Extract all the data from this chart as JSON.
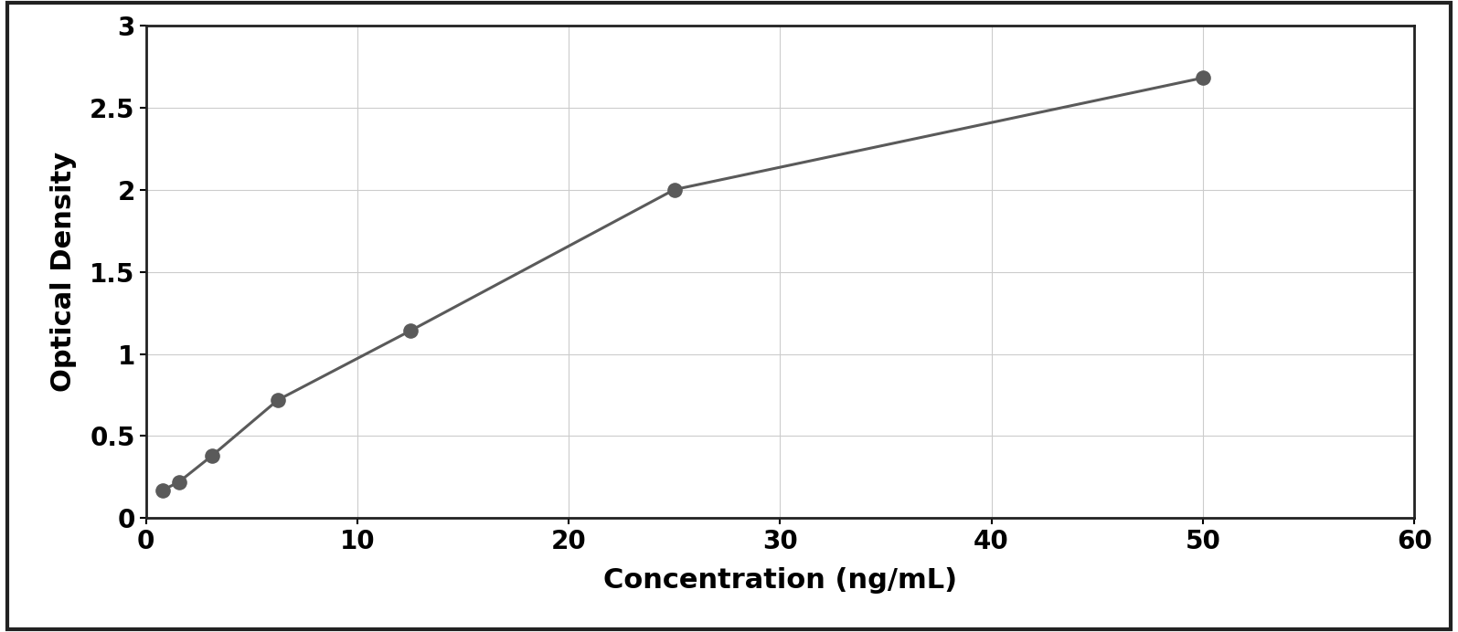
{
  "x_data": [
    0.78,
    1.56,
    3.125,
    6.25,
    12.5,
    25.0,
    50.0
  ],
  "y_data": [
    0.17,
    0.22,
    0.38,
    0.72,
    1.14,
    2.0,
    2.68
  ],
  "xlabel": "Concentration (ng/mL)",
  "ylabel": "Optical Density",
  "xlim": [
    0,
    60
  ],
  "ylim": [
    0,
    3
  ],
  "xticks": [
    0,
    10,
    20,
    30,
    40,
    50,
    60
  ],
  "yticks": [
    0,
    0.5,
    1.0,
    1.5,
    2.0,
    2.5,
    3.0
  ],
  "dot_color": "#5a5a5a",
  "line_color": "#5a5a5a",
  "figure_bg_color": "#ffffff",
  "plot_bg_color": "#ffffff",
  "grid_color": "#cccccc",
  "spine_color": "#222222",
  "xlabel_fontsize": 22,
  "ylabel_fontsize": 22,
  "tick_fontsize": 20,
  "dot_size": 120,
  "line_width": 2.2
}
